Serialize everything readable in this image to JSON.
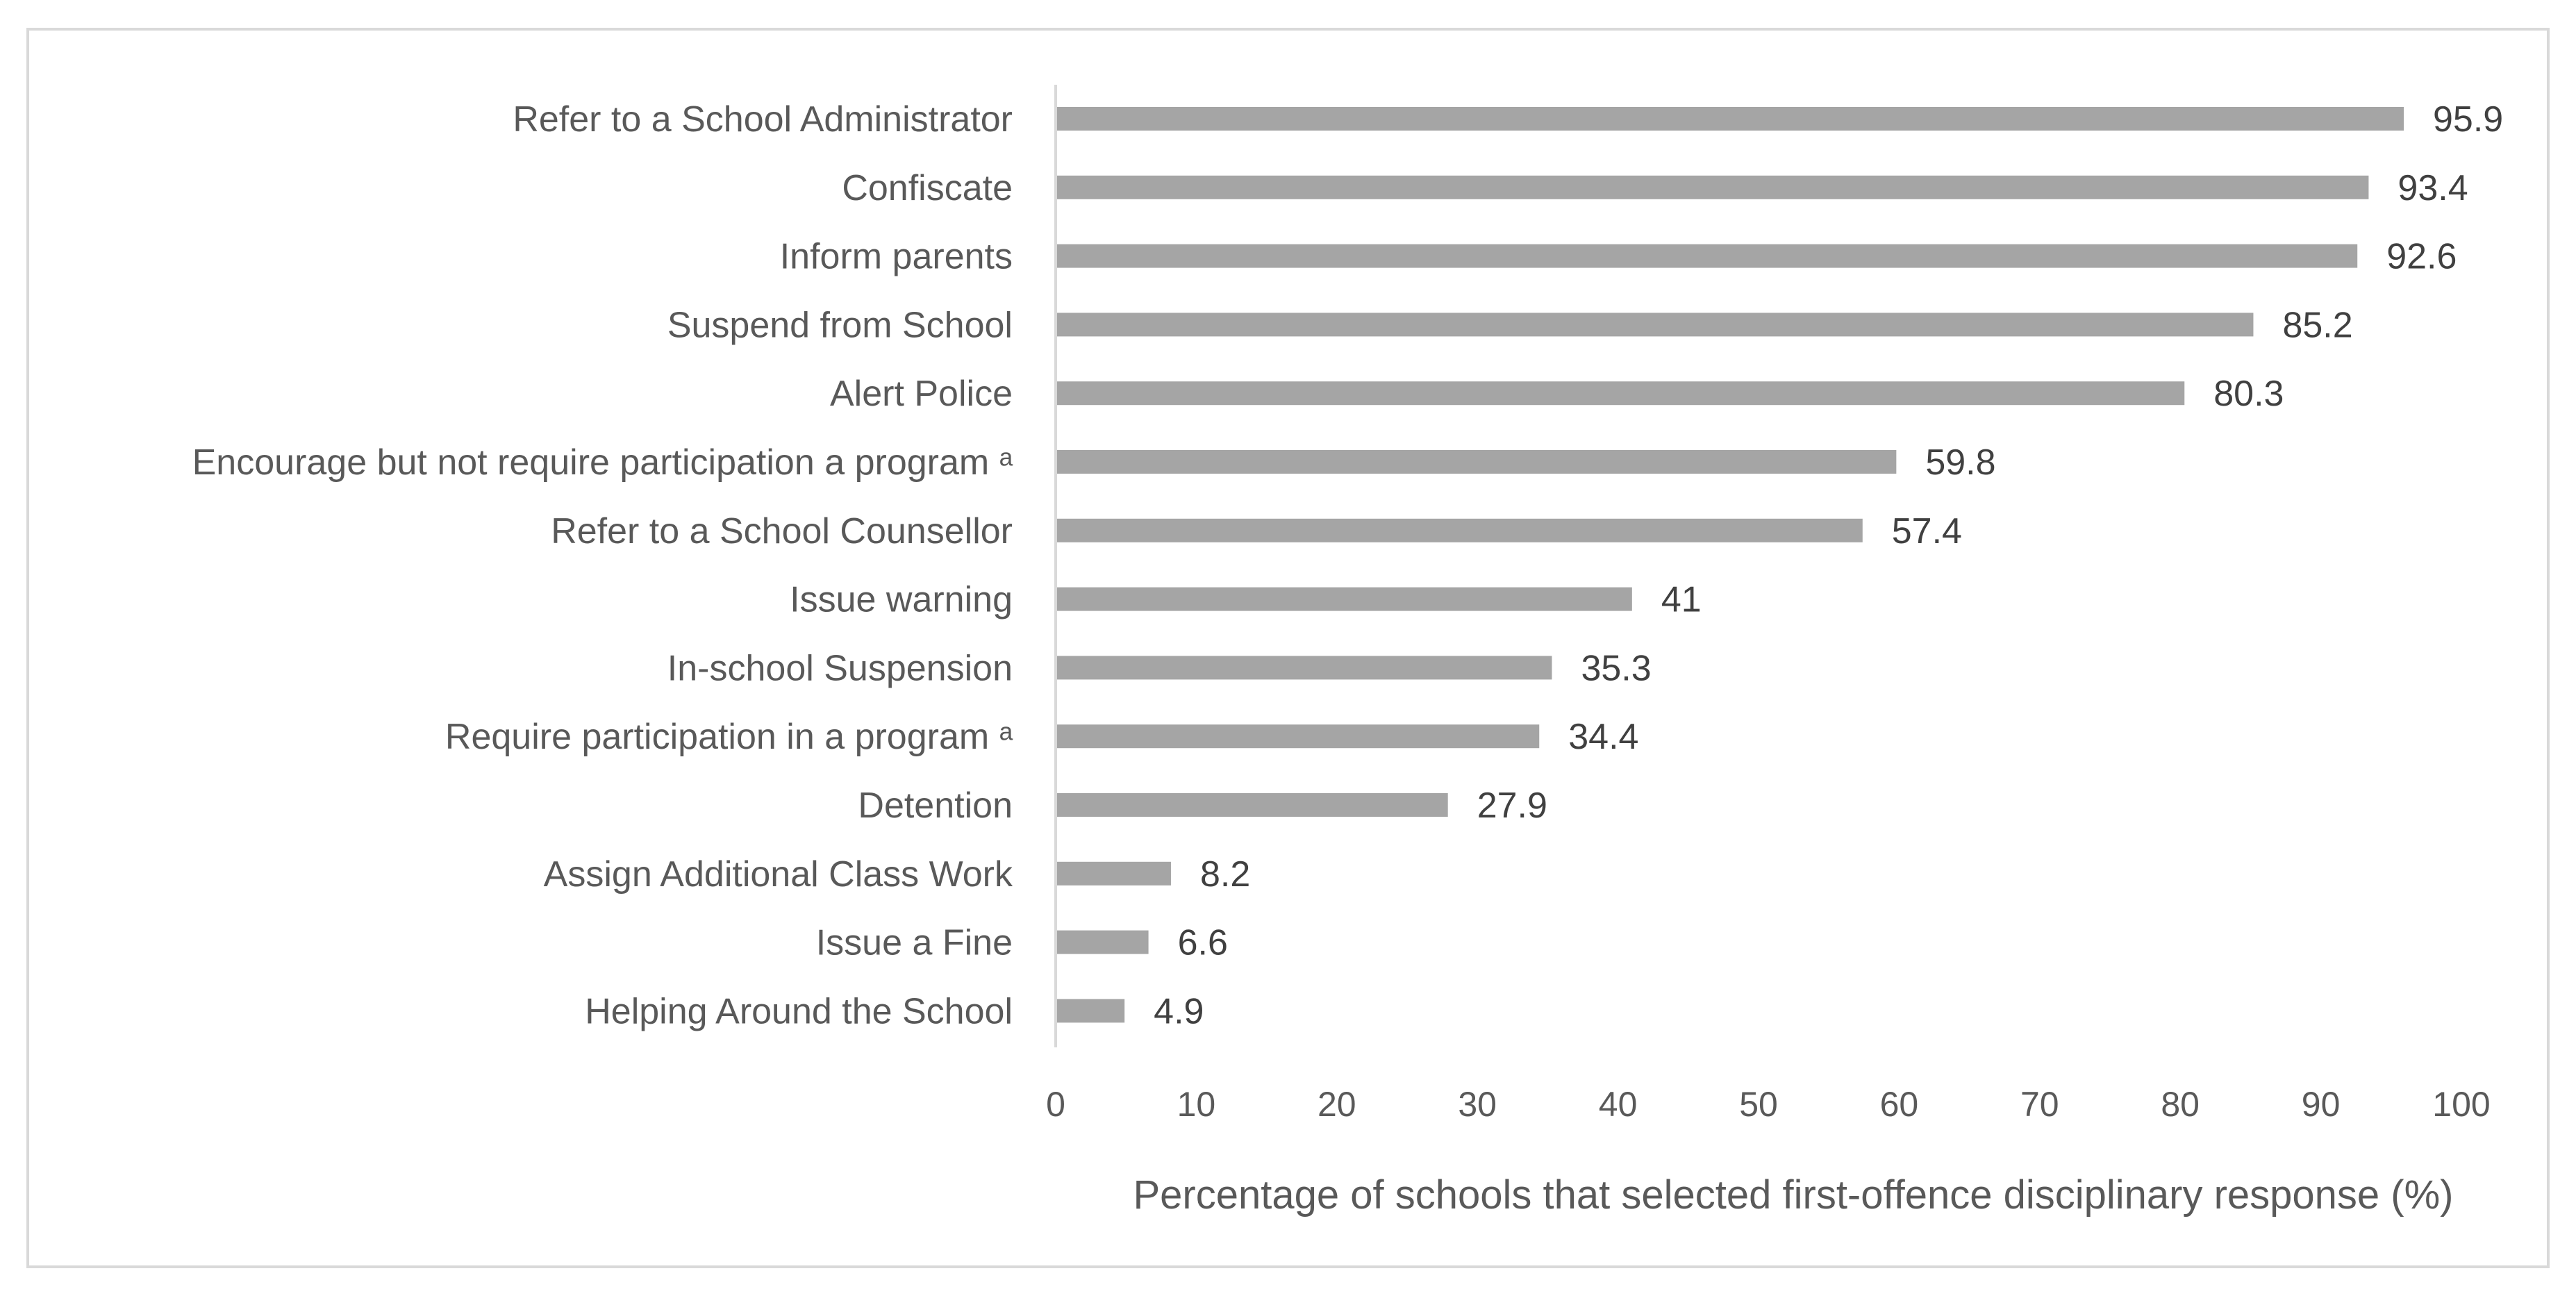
{
  "chart_data": {
    "type": "bar",
    "orientation": "horizontal",
    "categories": [
      "Refer to a School Administrator",
      "Confiscate",
      "Inform parents",
      "Suspend from School",
      "Alert Police",
      "Encourage but not require participation a program ᵃ",
      "Refer to a School Counsellor",
      "Issue warning",
      "In-school Suspension",
      "Require participation in a program ᵃ",
      "Detention",
      "Assign Additional Class Work",
      "Issue a Fine",
      "Helping Around the School"
    ],
    "values": [
      95.9,
      93.4,
      92.6,
      85.2,
      80.3,
      59.8,
      57.4,
      41,
      35.3,
      34.4,
      27.9,
      8.2,
      6.6,
      4.9
    ],
    "value_labels": [
      "95.9",
      "93.4",
      "92.6",
      "85.2",
      "80.3",
      "59.8",
      "57.4",
      "41",
      "35.3",
      "34.4",
      "27.9",
      "8.2",
      "6.6",
      "4.9"
    ],
    "xlabel": "Percentage of schools that selected first-offence disciplinary response (%)",
    "ylabel": "",
    "xlim": [
      0,
      100
    ],
    "xticks": [
      "0",
      "10",
      "20",
      "30",
      "40",
      "50",
      "60",
      "70",
      "80",
      "90",
      "100"
    ],
    "grid": false,
    "legend": "none",
    "bar_color": "#a5a5a5",
    "axis_line_color": "#d9d9d9"
  }
}
